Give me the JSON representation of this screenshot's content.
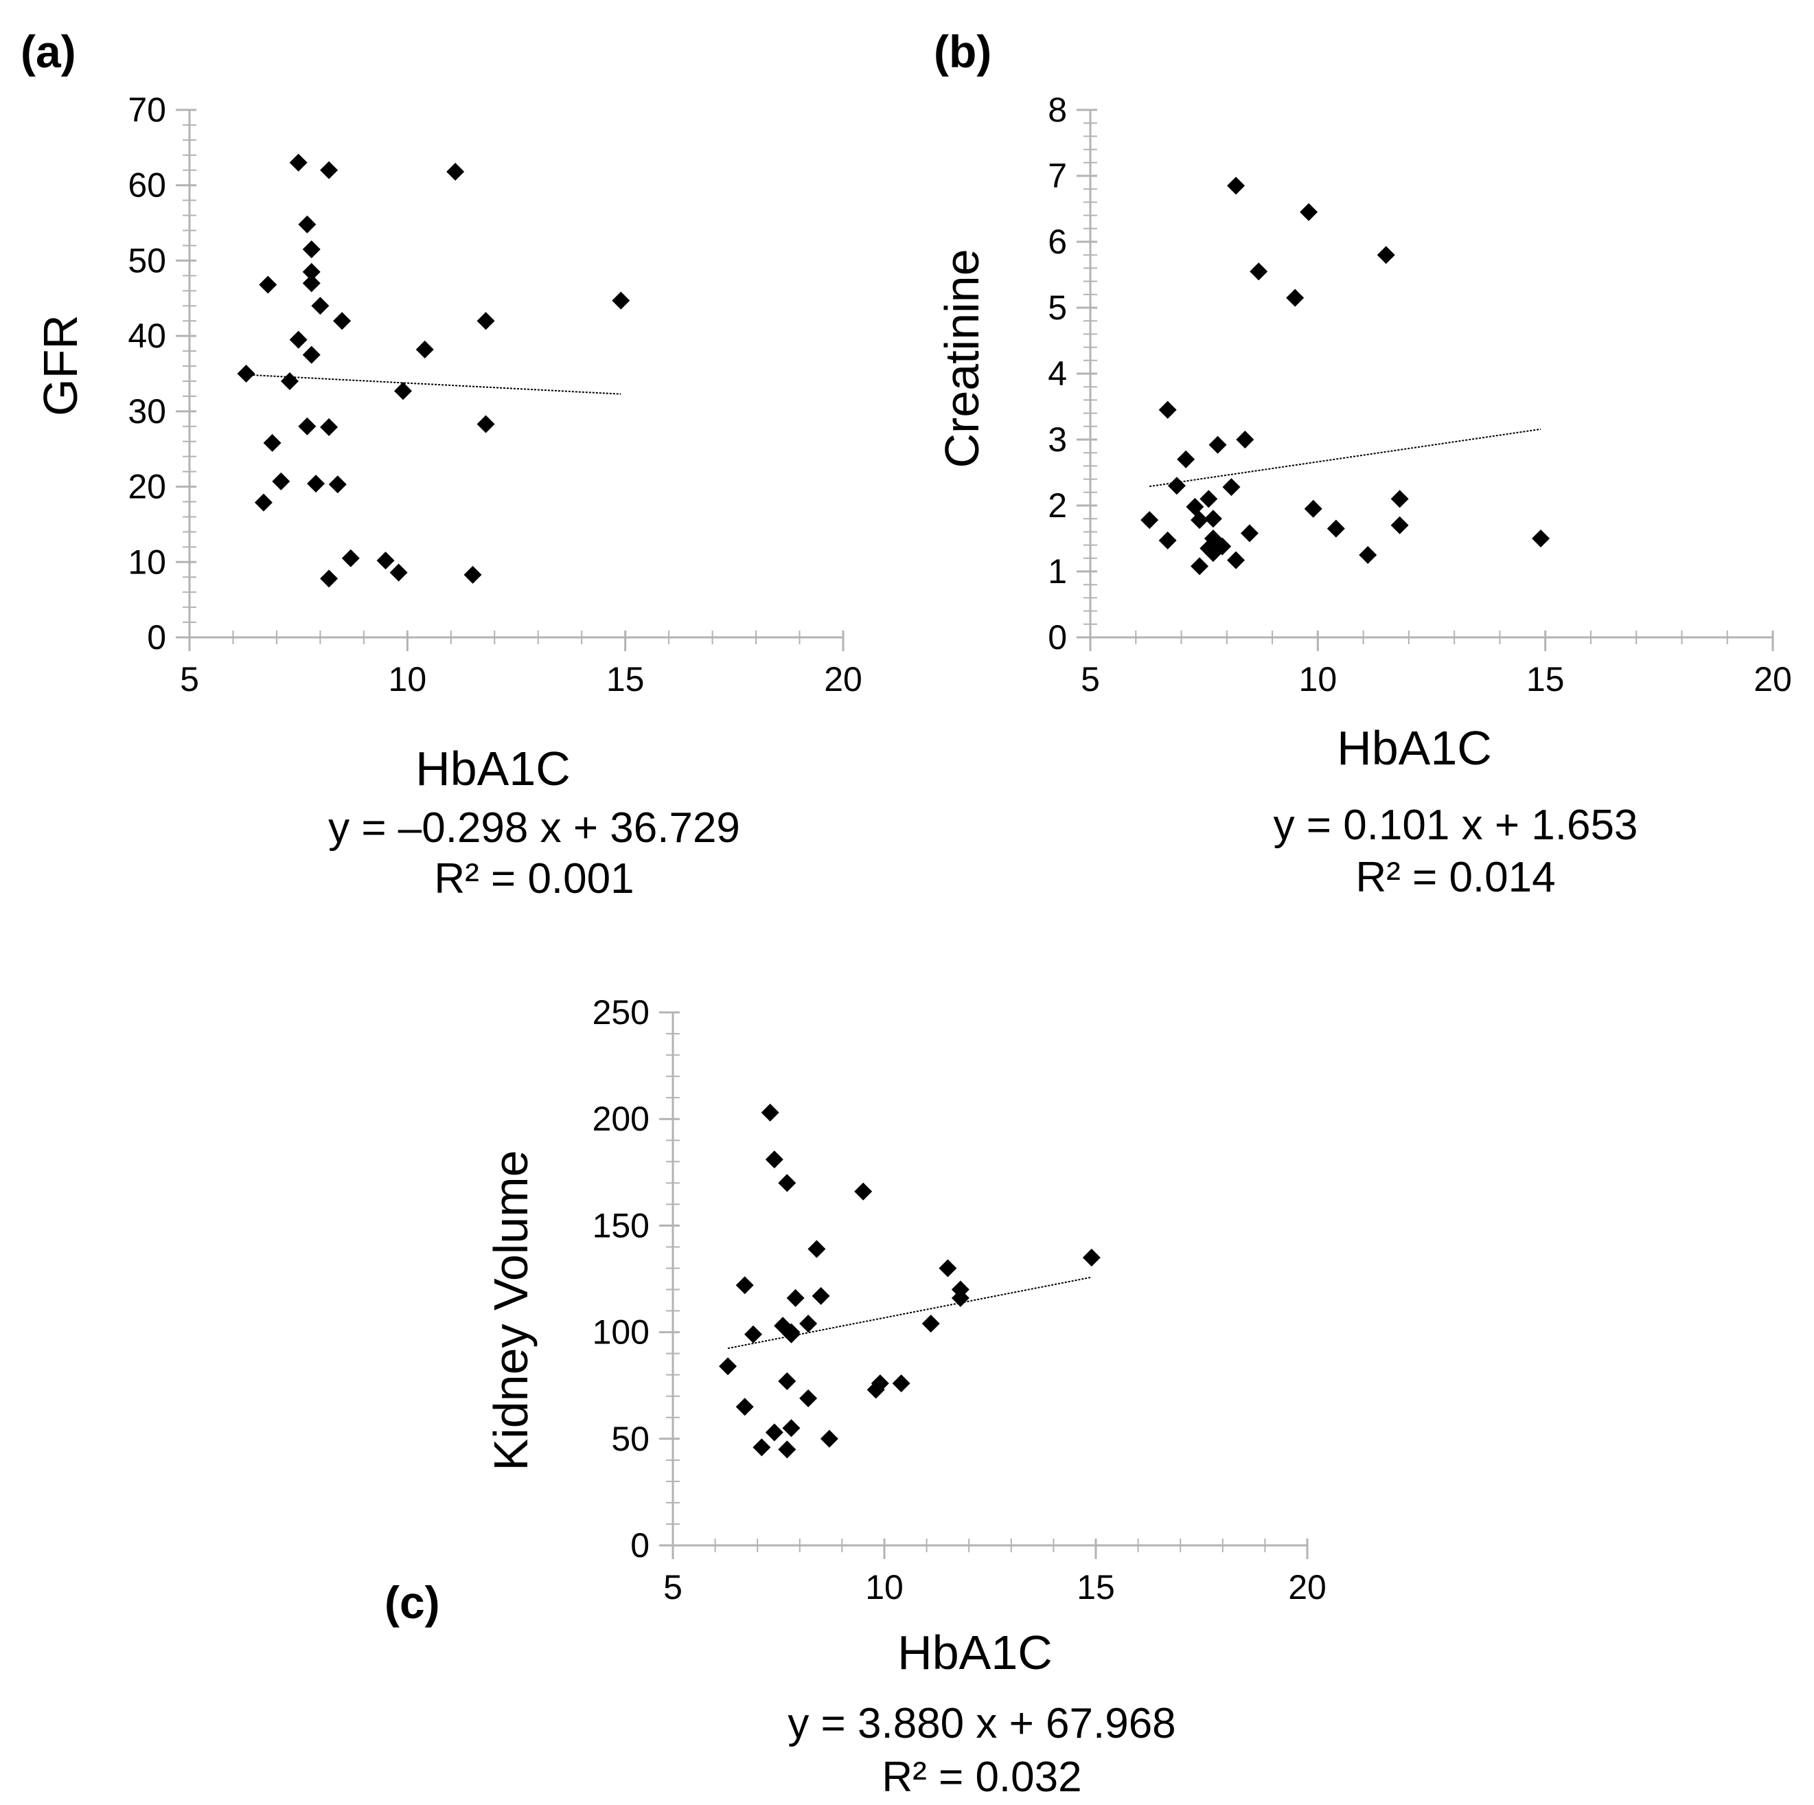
{
  "chart_data": [
    {
      "panel_label": "(a)",
      "type": "scatter",
      "xlabel": "HbA1C",
      "ylabel": "GFR",
      "xlim": [
        5,
        20
      ],
      "ylim": [
        0,
        70
      ],
      "x_ticks": [
        5,
        10,
        15,
        20
      ],
      "y_ticks": [
        0,
        10,
        20,
        30,
        40,
        50,
        60,
        70
      ],
      "x_minor_step": 1,
      "y_minor_step": 2,
      "grid": false,
      "marker": "diamond",
      "points": [
        {
          "x": 7.5,
          "y": 63.0
        },
        {
          "x": 8.2,
          "y": 62.0
        },
        {
          "x": 11.1,
          "y": 61.8
        },
        {
          "x": 7.7,
          "y": 54.8
        },
        {
          "x": 7.8,
          "y": 51.5
        },
        {
          "x": 7.8,
          "y": 48.5
        },
        {
          "x": 7.8,
          "y": 47.0
        },
        {
          "x": 6.8,
          "y": 46.8
        },
        {
          "x": 14.9,
          "y": 44.7
        },
        {
          "x": 8.0,
          "y": 44.0
        },
        {
          "x": 8.5,
          "y": 42.0
        },
        {
          "x": 11.8,
          "y": 42.0
        },
        {
          "x": 7.5,
          "y": 39.5
        },
        {
          "x": 10.4,
          "y": 38.2
        },
        {
          "x": 7.8,
          "y": 37.5
        },
        {
          "x": 6.3,
          "y": 35.0
        },
        {
          "x": 7.3,
          "y": 34.0
        },
        {
          "x": 9.9,
          "y": 32.7
        },
        {
          "x": 11.8,
          "y": 28.3
        },
        {
          "x": 7.7,
          "y": 28.0
        },
        {
          "x": 8.2,
          "y": 27.9
        },
        {
          "x": 6.9,
          "y": 25.8
        },
        {
          "x": 7.1,
          "y": 20.7
        },
        {
          "x": 7.9,
          "y": 20.4
        },
        {
          "x": 8.4,
          "y": 20.3
        },
        {
          "x": 6.7,
          "y": 17.9
        },
        {
          "x": 8.7,
          "y": 10.5
        },
        {
          "x": 9.5,
          "y": 10.2
        },
        {
          "x": 9.8,
          "y": 8.6
        },
        {
          "x": 11.5,
          "y": 8.3
        },
        {
          "x": 8.2,
          "y": 7.8
        }
      ],
      "trendline": {
        "x_range": [
          6.3,
          14.9
        ],
        "slope": -0.298,
        "intercept": 36.729
      },
      "equation": "y = –0.298 x + 36.729",
      "r_squared": "R² = 0.001"
    },
    {
      "panel_label": "(b)",
      "type": "scatter",
      "xlabel": "HbA1C",
      "ylabel": "Creatinine",
      "xlim": [
        5,
        20
      ],
      "ylim": [
        0,
        8
      ],
      "x_ticks": [
        5,
        10,
        15,
        20
      ],
      "y_ticks": [
        0,
        1,
        2,
        3,
        4,
        5,
        6,
        7,
        8
      ],
      "x_minor_step": 1,
      "y_minor_step": 0.2,
      "grid": false,
      "marker": "diamond",
      "points": [
        {
          "x": 8.2,
          "y": 6.85
        },
        {
          "x": 9.8,
          "y": 6.45
        },
        {
          "x": 11.5,
          "y": 5.8
        },
        {
          "x": 8.7,
          "y": 5.55
        },
        {
          "x": 9.5,
          "y": 5.15
        },
        {
          "x": 6.7,
          "y": 3.45
        },
        {
          "x": 8.4,
          "y": 3.0
        },
        {
          "x": 7.8,
          "y": 2.92
        },
        {
          "x": 7.1,
          "y": 2.7
        },
        {
          "x": 6.9,
          "y": 2.3
        },
        {
          "x": 8.1,
          "y": 2.28
        },
        {
          "x": 7.6,
          "y": 2.1
        },
        {
          "x": 11.8,
          "y": 2.1
        },
        {
          "x": 7.3,
          "y": 1.98
        },
        {
          "x": 9.9,
          "y": 1.95
        },
        {
          "x": 7.4,
          "y": 1.78
        },
        {
          "x": 7.7,
          "y": 1.8
        },
        {
          "x": 6.3,
          "y": 1.78
        },
        {
          "x": 11.8,
          "y": 1.7
        },
        {
          "x": 10.4,
          "y": 1.65
        },
        {
          "x": 8.5,
          "y": 1.58
        },
        {
          "x": 7.7,
          "y": 1.5
        },
        {
          "x": 14.9,
          "y": 1.5
        },
        {
          "x": 6.7,
          "y": 1.47
        },
        {
          "x": 7.8,
          "y": 1.42
        },
        {
          "x": 7.9,
          "y": 1.38
        },
        {
          "x": 7.6,
          "y": 1.35
        },
        {
          "x": 7.7,
          "y": 1.28
        },
        {
          "x": 11.1,
          "y": 1.25
        },
        {
          "x": 8.2,
          "y": 1.17
        },
        {
          "x": 7.4,
          "y": 1.08
        }
      ],
      "trendline": {
        "x_range": [
          6.3,
          14.9
        ],
        "slope": 0.101,
        "intercept": 1.653
      },
      "equation": "y = 0.101 x + 1.653",
      "r_squared": "R² = 0.014"
    },
    {
      "panel_label": "(c)",
      "type": "scatter",
      "xlabel": "HbA1C",
      "ylabel": "Kidney Volume",
      "xlim": [
        5,
        20
      ],
      "ylim": [
        0,
        250
      ],
      "x_ticks": [
        5,
        10,
        15,
        20
      ],
      "y_ticks": [
        0,
        50,
        100,
        150,
        200,
        250
      ],
      "x_minor_step": 1,
      "y_minor_step": 10,
      "grid": false,
      "marker": "diamond",
      "points": [
        {
          "x": 7.3,
          "y": 203
        },
        {
          "x": 7.4,
          "y": 181
        },
        {
          "x": 7.7,
          "y": 170
        },
        {
          "x": 9.5,
          "y": 166
        },
        {
          "x": 8.4,
          "y": 139
        },
        {
          "x": 14.9,
          "y": 135
        },
        {
          "x": 11.5,
          "y": 130
        },
        {
          "x": 6.7,
          "y": 122
        },
        {
          "x": 11.8,
          "y": 120
        },
        {
          "x": 7.9,
          "y": 116
        },
        {
          "x": 8.5,
          "y": 117
        },
        {
          "x": 11.8,
          "y": 116
        },
        {
          "x": 11.1,
          "y": 104
        },
        {
          "x": 8.2,
          "y": 104
        },
        {
          "x": 7.6,
          "y": 103
        },
        {
          "x": 7.8,
          "y": 100
        },
        {
          "x": 7.8,
          "y": 99
        },
        {
          "x": 6.9,
          "y": 99
        },
        {
          "x": 6.3,
          "y": 84
        },
        {
          "x": 7.7,
          "y": 77
        },
        {
          "x": 10.4,
          "y": 76
        },
        {
          "x": 9.9,
          "y": 76
        },
        {
          "x": 9.8,
          "y": 73
        },
        {
          "x": 8.2,
          "y": 69
        },
        {
          "x": 6.7,
          "y": 65
        },
        {
          "x": 7.8,
          "y": 55
        },
        {
          "x": 7.4,
          "y": 53
        },
        {
          "x": 8.7,
          "y": 50
        },
        {
          "x": 7.1,
          "y": 46
        },
        {
          "x": 7.7,
          "y": 45
        }
      ],
      "trendline": {
        "x_range": [
          6.3,
          14.9
        ],
        "slope": 3.88,
        "intercept": 67.968
      },
      "equation": "y = 3.880 x + 67.968",
      "r_squared": "R² = 0.032"
    }
  ]
}
